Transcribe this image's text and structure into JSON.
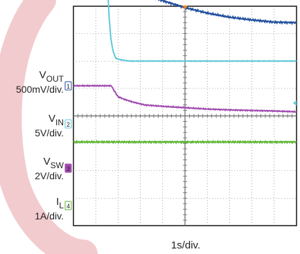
{
  "colors": {
    "watermark": "#e8a0a8",
    "vout": "#1f4e9c",
    "vin": "#5ec7d8",
    "vsw": "#a04ab0",
    "il": "#59b52f",
    "grid": "#666666",
    "trigger": "#f08020"
  },
  "chart_data": {
    "type": "line",
    "title": "",
    "xlabel": "1s/div.",
    "grid": true,
    "x_range_s": [
      0,
      10
    ],
    "marker_icons": [
      "trigger-marker-icon",
      "vout-offset-marker-icon"
    ],
    "channels": [
      {
        "label_main": "V",
        "label_sub": "OUT",
        "scale": "500mV/div.",
        "marker": "1",
        "name": "VOUT",
        "x": [
          0,
          1.0,
          1.7,
          1.78,
          1.85,
          2.0,
          2.3,
          2.7,
          3.2,
          4,
          5,
          6,
          7,
          8,
          9,
          10
        ],
        "y_div": [
          6.55,
          6.55,
          6.55,
          6.45,
          6.1,
          5.55,
          5.0,
          4.7,
          4.45,
          4.2,
          3.95,
          3.75,
          3.6,
          3.5,
          3.42,
          3.4
        ]
      },
      {
        "label_main": "V",
        "label_sub": "IN",
        "scale": "5V/div.",
        "marker": "2",
        "name": "VIN",
        "x": [
          0.1,
          1.0,
          1.45,
          1.5,
          1.55,
          1.6,
          1.68,
          1.78,
          1.9,
          2.1,
          2.5,
          3,
          5,
          7,
          9,
          10
        ],
        "y_div": [
          5.1,
          5.1,
          5.1,
          4.9,
          4.4,
          3.6,
          2.8,
          2.35,
          2.1,
          2.05,
          2.0,
          2.0,
          2.0,
          2.0,
          2.0,
          2.0
        ]
      },
      {
        "label_main": "V",
        "label_sub": "SW",
        "scale": "2V/div.",
        "marker": "3",
        "name": "VSW",
        "x": [
          0,
          1.0,
          1.7,
          1.8,
          2.0,
          2.3,
          2.7,
          3.2,
          4,
          5,
          6,
          7,
          8,
          9,
          10
        ],
        "y_div": [
          1.1,
          1.1,
          1.1,
          0.95,
          0.7,
          0.6,
          0.5,
          0.4,
          0.35,
          0.3,
          0.25,
          0.22,
          0.2,
          0.18,
          0.15
        ]
      },
      {
        "label_main": "I",
        "label_sub": "L",
        "scale": "1A/div.",
        "marker": "4",
        "name": "IL",
        "x": [
          0,
          10
        ],
        "y_div": [
          -0.95,
          -0.95
        ]
      }
    ]
  }
}
